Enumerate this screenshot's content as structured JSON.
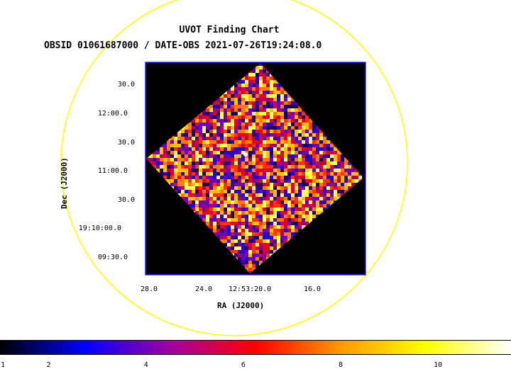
{
  "chart": {
    "title": "UVOT Finding Chart",
    "subtitle": "OBSID 01061687000 / DATE-OBS 2021-07-26T19:24:08.0",
    "xlabel": "RA (J2000)",
    "ylabel": "Dec (J2000)"
  },
  "colors": {
    "circle": "#ffff00",
    "frame": "#2222ff",
    "background": "#000000"
  },
  "chart_data": {
    "type": "heatmap",
    "ra_ticks": [
      "28.0",
      "24.0",
      "12:53:20.0",
      "16.0"
    ],
    "dec_ticks": [
      "30.0",
      "12:00.0",
      "30.0",
      "11:00.0",
      "30.0",
      "19:10:00.0",
      "09:30.0"
    ],
    "colorbar": {
      "ticks": [
        "1",
        "2",
        "4",
        "6",
        "8",
        "10"
      ],
      "values": [
        1,
        2,
        4,
        6,
        8,
        10
      ],
      "range": [
        1,
        11.5
      ],
      "stops": [
        "#000000",
        "#0000ff",
        "#a000a0",
        "#ff0000",
        "#ff9900",
        "#ffff00",
        "#ffffff"
      ]
    }
  }
}
